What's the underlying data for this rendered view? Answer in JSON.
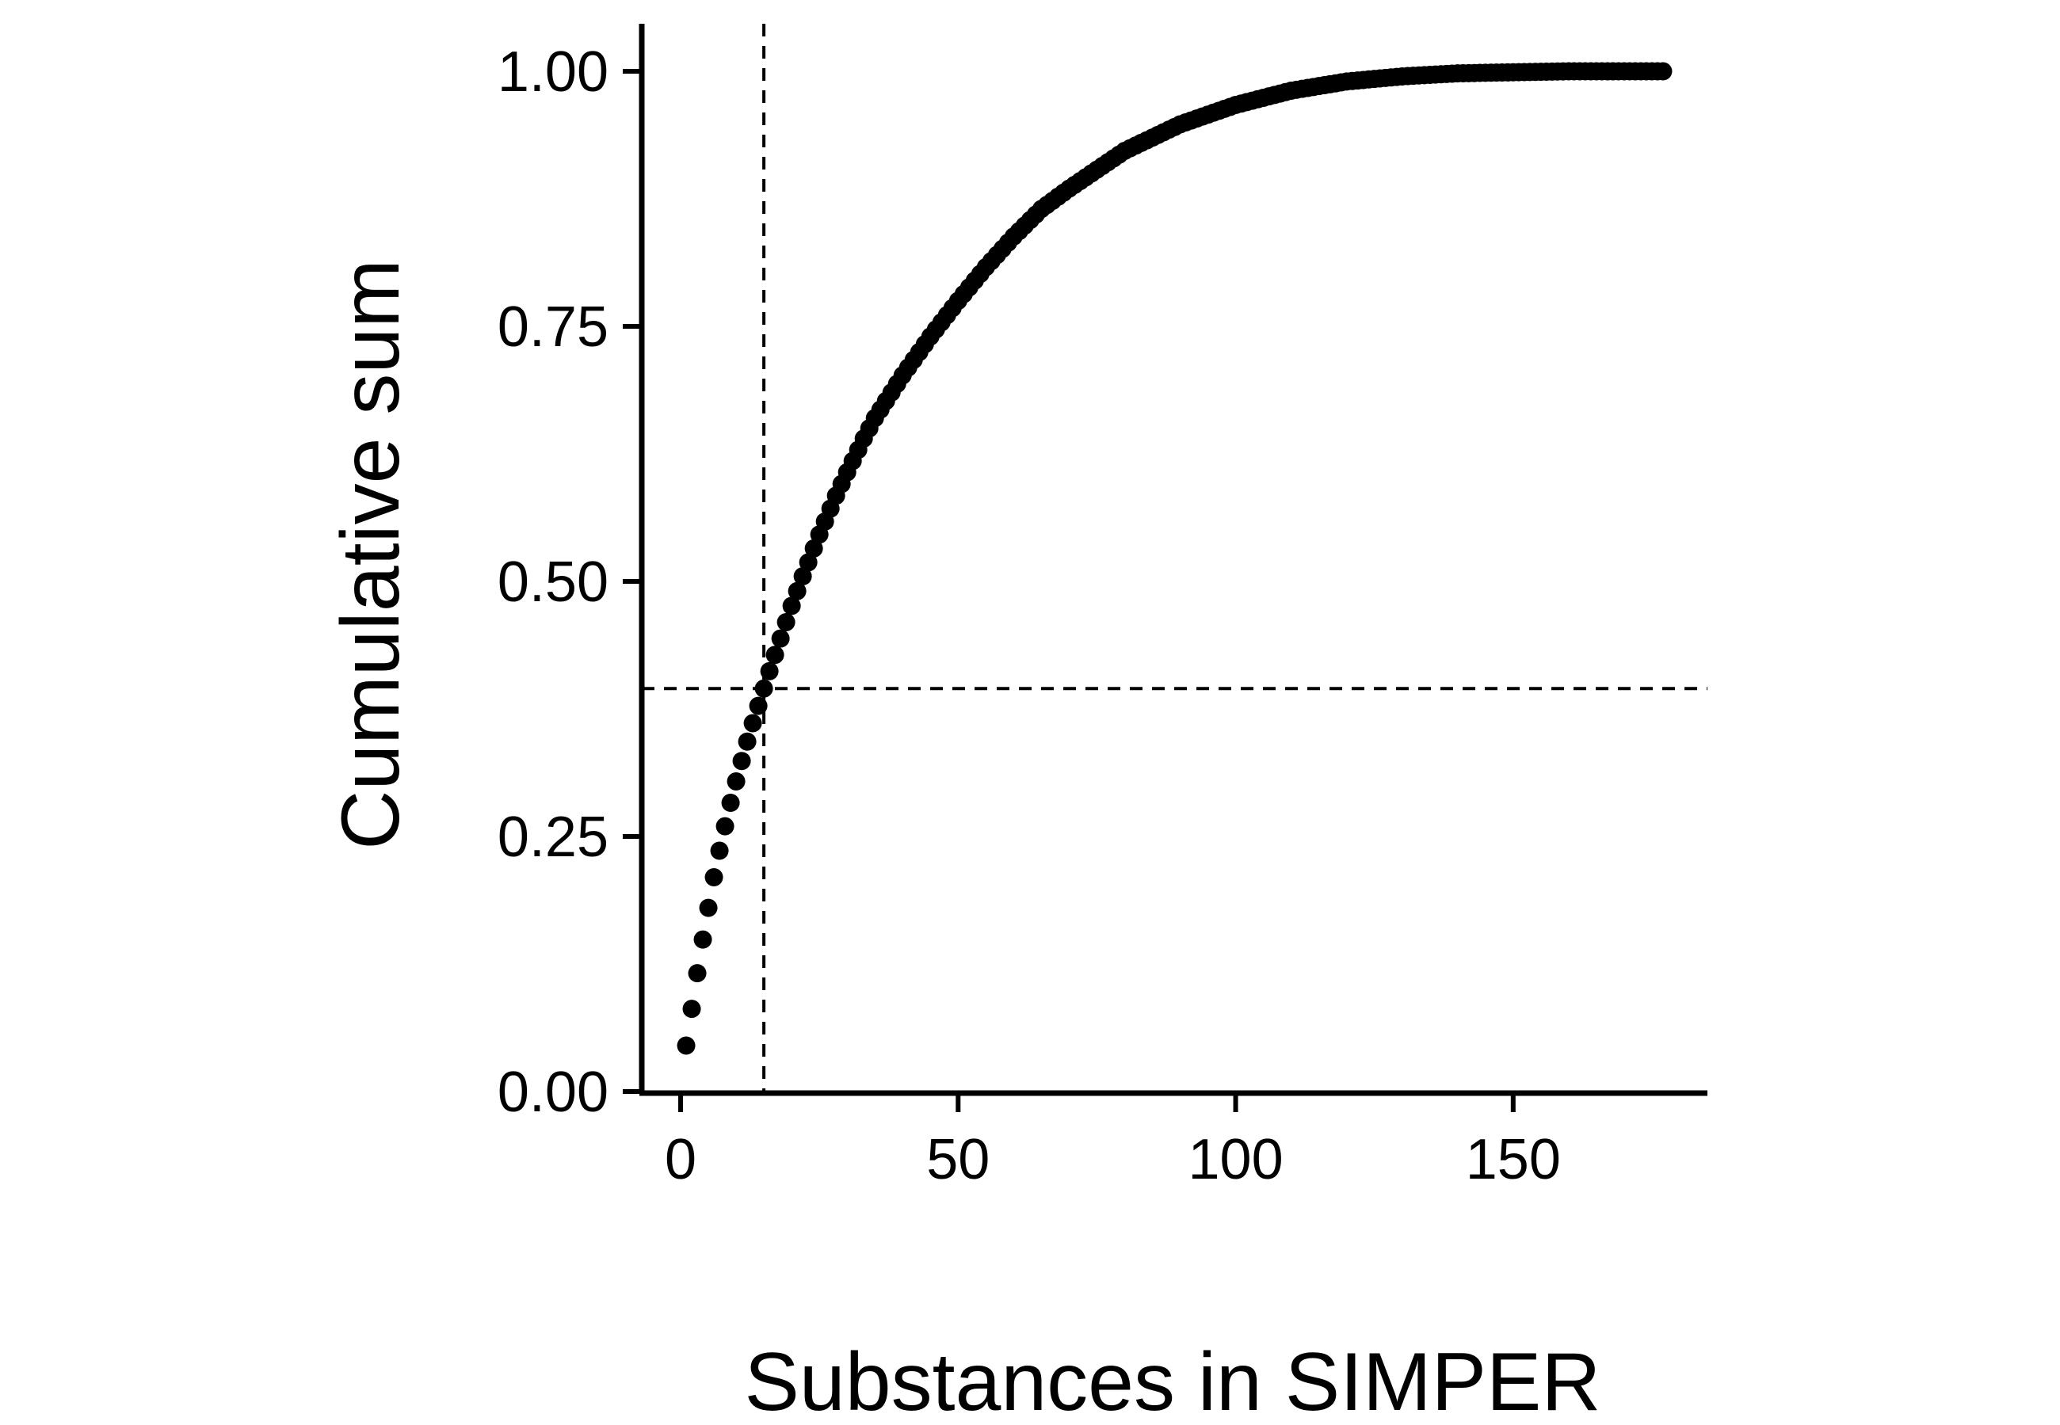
{
  "chart_data": {
    "type": "scatter",
    "title": "",
    "xlabel": "Substances in SIMPER",
    "ylabel": "Cumulative sum",
    "xlim": [
      -7,
      185
    ],
    "ylim": [
      0,
      1.0
    ],
    "x_ticks": [
      0,
      50,
      100,
      150
    ],
    "x_tick_labels": [
      "0",
      "50",
      "100",
      "150"
    ],
    "y_ticks": [
      0,
      0.25,
      0.5,
      0.75,
      1.0
    ],
    "y_tick_labels": [
      "0.00",
      "0.25",
      "0.50",
      "0.75",
      "1.00"
    ],
    "grid": false,
    "legend": "none",
    "n_points": 177,
    "x_range": [
      1,
      177
    ],
    "series": [
      {
        "color": "#000000",
        "x_anchors": [
          1,
          2,
          3,
          4,
          5,
          6,
          7,
          8,
          9,
          10,
          11,
          12,
          13,
          14,
          15,
          16,
          17,
          18,
          19,
          20,
          22,
          25,
          28,
          30,
          33,
          35,
          40,
          45,
          50,
          55,
          60,
          65,
          70,
          80,
          90,
          100,
          110,
          120,
          130,
          140,
          150,
          160,
          170,
          177
        ],
        "y_anchors": [
          0.045,
          0.081,
          0.116,
          0.149,
          0.18,
          0.21,
          0.236,
          0.26,
          0.283,
          0.304,
          0.324,
          0.343,
          0.361,
          0.378,
          0.395,
          0.412,
          0.428,
          0.444,
          0.46,
          0.476,
          0.505,
          0.546,
          0.584,
          0.607,
          0.64,
          0.66,
          0.702,
          0.74,
          0.775,
          0.808,
          0.838,
          0.865,
          0.885,
          0.922,
          0.948,
          0.967,
          0.981,
          0.99,
          0.995,
          0.998,
          0.999,
          1.0,
          1.0,
          1.0
        ]
      }
    ],
    "reference_lines": [
      {
        "orientation": "vertical",
        "x": 15,
        "style": "dashed"
      },
      {
        "orientation": "horizontal",
        "y": 0.395,
        "style": "dashed"
      }
    ]
  }
}
